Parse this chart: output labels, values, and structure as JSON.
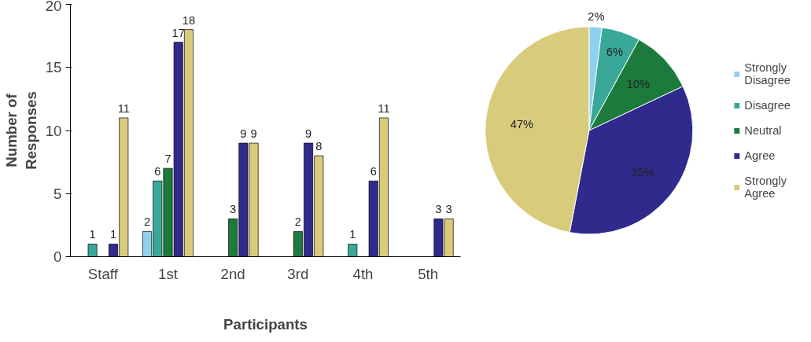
{
  "chart_data": [
    {
      "type": "bar",
      "xlabel": "Participants",
      "ylabel": "Number of\nResponses",
      "categories": [
        "Staff",
        "1st",
        "2nd",
        "3rd",
        "4th",
        "5th"
      ],
      "ylim": [
        0,
        20
      ],
      "yticks": [
        0,
        5,
        10,
        15,
        20
      ],
      "grid": false,
      "legend": false,
      "series": [
        {
          "color": "#8fd0ee",
          "values": [
            0,
            2,
            0,
            0,
            0,
            0
          ],
          "value_labels": [
            null,
            "2",
            null,
            null,
            null,
            null
          ]
        },
        {
          "color": "#3aa898",
          "values": [
            1,
            6,
            0,
            0,
            1,
            0
          ],
          "value_labels": [
            "1",
            "6",
            null,
            null,
            "1",
            null
          ]
        },
        {
          "color": "#1b7a3c",
          "values": [
            0,
            7,
            3,
            2,
            0,
            0
          ],
          "value_labels": [
            null,
            "7",
            "3",
            "2",
            null,
            null
          ]
        },
        {
          "color": "#2f2a8c",
          "values": [
            1,
            17,
            9,
            9,
            6,
            3
          ],
          "value_labels": [
            "1",
            "17",
            "9",
            "9",
            "6",
            "3"
          ]
        },
        {
          "color": "#d9cb7c",
          "values": [
            11,
            18,
            9,
            8,
            11,
            3
          ],
          "value_labels": [
            "11",
            "18",
            "9",
            "8",
            "11",
            "3"
          ]
        }
      ]
    },
    {
      "type": "pie",
      "categories": [
        "Strongly\nDisagree",
        "Disagree",
        "Neutral",
        "Agree",
        "Strongly\nAgree"
      ],
      "values": [
        2,
        6,
        10,
        35,
        47
      ],
      "colors": [
        "#8fd0ee",
        "#3aa898",
        "#1b7a3c",
        "#2f2a8c",
        "#d9cb7c"
      ],
      "value_labels": [
        "2%",
        "6%",
        "10%",
        "35%",
        "47%"
      ],
      "legend": "right"
    }
  ]
}
